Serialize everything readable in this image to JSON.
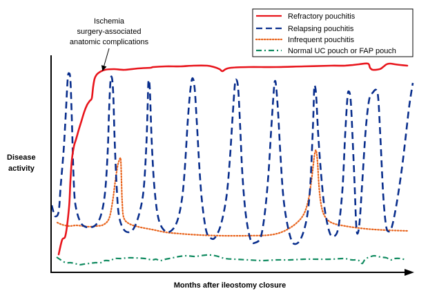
{
  "chart_data": {
    "type": "line",
    "xlabel": "Months after ileostomy closure",
    "ylabel": [
      "Disease",
      "activity"
    ],
    "annotation": [
      "Ischemia",
      "surgery-associated",
      "anatomic complications"
    ],
    "legend_position": "top-right",
    "series": [
      {
        "name": "Refractory pouchitis",
        "color": "#e8141b",
        "style": "solid",
        "points": [
          [
            85,
            368
          ],
          [
            90,
            347
          ],
          [
            95,
            340
          ],
          [
            100,
            300
          ],
          [
            102,
            262
          ],
          [
            104,
            232
          ],
          [
            107,
            212
          ],
          [
            110,
            202
          ],
          [
            114,
            188
          ],
          [
            118,
            175
          ],
          [
            122,
            162
          ],
          [
            126,
            152
          ],
          [
            130,
            146
          ],
          [
            133,
            142
          ],
          [
            135,
            125
          ],
          [
            137,
            114
          ],
          [
            140,
            108
          ],
          [
            145,
            104
          ],
          [
            152,
            101
          ],
          [
            165,
            100
          ],
          [
            180,
            101
          ],
          [
            200,
            99
          ],
          [
            218,
            98
          ],
          [
            222,
            97
          ],
          [
            240,
            96
          ],
          [
            262,
            96
          ],
          [
            280,
            95
          ],
          [
            300,
            95
          ],
          [
            310,
            97
          ],
          [
            318,
            100
          ],
          [
            322,
            103
          ],
          [
            327,
            100
          ],
          [
            335,
            98
          ],
          [
            360,
            97
          ],
          [
            400,
            97
          ],
          [
            440,
            96
          ],
          [
            480,
            95
          ],
          [
            500,
            95
          ],
          [
            520,
            93
          ],
          [
            533,
            92
          ],
          [
            536,
            98
          ],
          [
            540,
            101
          ],
          [
            550,
            100
          ],
          [
            556,
            96
          ],
          [
            560,
            93
          ],
          [
            565,
            92
          ],
          [
            572,
            93
          ],
          [
            580,
            94
          ],
          [
            590,
            95
          ]
        ]
      },
      {
        "name": "Relapsing pouchitis",
        "color": "#082d8c",
        "style": "dashed",
        "points": [
          [
            75,
            297
          ],
          [
            77,
            305
          ],
          [
            80,
            313
          ],
          [
            85,
            306
          ],
          [
            88,
            268
          ],
          [
            92,
            220
          ],
          [
            95,
            170
          ],
          [
            98,
            115
          ],
          [
            100,
            106
          ],
          [
            102,
            116
          ],
          [
            104,
            170
          ],
          [
            106,
            240
          ],
          [
            108,
            285
          ],
          [
            111,
            305
          ],
          [
            115,
            318
          ],
          [
            120,
            326
          ],
          [
            128,
            329
          ],
          [
            138,
            326
          ],
          [
            146,
            312
          ],
          [
            152,
            280
          ],
          [
            156,
            220
          ],
          [
            158,
            160
          ],
          [
            160,
            118
          ],
          [
            162,
            112
          ],
          [
            164,
            135
          ],
          [
            166,
            200
          ],
          [
            169,
            270
          ],
          [
            172,
            310
          ],
          [
            178,
            330
          ],
          [
            186,
            336
          ],
          [
            194,
            330
          ],
          [
            202,
            308
          ],
          [
            208,
            275
          ],
          [
            212,
            210
          ],
          [
            214,
            150
          ],
          [
            215,
            118
          ],
          [
            217,
            128
          ],
          [
            220,
            210
          ],
          [
            224,
            275
          ],
          [
            230,
            318
          ],
          [
            240,
            335
          ],
          [
            250,
            332
          ],
          [
            258,
            316
          ],
          [
            264,
            285
          ],
          [
            268,
            240
          ],
          [
            272,
            175
          ],
          [
            276,
            128
          ],
          [
            279,
            113
          ],
          [
            282,
            128
          ],
          [
            285,
            175
          ],
          [
            289,
            245
          ],
          [
            293,
            295
          ],
          [
            299,
            335
          ],
          [
            306,
            345
          ],
          [
            312,
            343
          ],
          [
            320,
            325
          ],
          [
            328,
            285
          ],
          [
            333,
            230
          ],
          [
            337,
            168
          ],
          [
            340,
            125
          ],
          [
            342,
            115
          ],
          [
            345,
            128
          ],
          [
            348,
            185
          ],
          [
            351,
            250
          ],
          [
            356,
            310
          ],
          [
            363,
            347
          ],
          [
            370,
            351
          ],
          [
            378,
            342
          ],
          [
            384,
            305
          ],
          [
            389,
            250
          ],
          [
            393,
            185
          ],
          [
            396,
            140
          ],
          [
            398,
            118
          ],
          [
            400,
            125
          ],
          [
            403,
            165
          ],
          [
            406,
            220
          ],
          [
            410,
            280
          ],
          [
            415,
            318
          ],
          [
            422,
            347
          ],
          [
            428,
            353
          ],
          [
            436,
            345
          ],
          [
            444,
            318
          ],
          [
            449,
            275
          ],
          [
            452,
            215
          ],
          [
            454,
            165
          ],
          [
            455,
            130
          ],
          [
            456,
            124
          ],
          [
            458,
            138
          ],
          [
            461,
            195
          ],
          [
            465,
            250
          ],
          [
            470,
            300
          ],
          [
            477,
            335
          ],
          [
            483,
            342
          ],
          [
            490,
            330
          ],
          [
            496,
            275
          ],
          [
            500,
            195
          ],
          [
            503,
            145
          ],
          [
            505,
            132
          ],
          [
            508,
            145
          ],
          [
            511,
            205
          ],
          [
            514,
            275
          ],
          [
            516,
            325
          ],
          [
            518,
            338
          ],
          [
            521,
            320
          ],
          [
            525,
            260
          ],
          [
            530,
            185
          ],
          [
            535,
            143
          ],
          [
            540,
            134
          ],
          [
            545,
            130
          ],
          [
            548,
            143
          ],
          [
            551,
            198
          ],
          [
            555,
            280
          ],
          [
            559,
            325
          ],
          [
            563,
            335
          ],
          [
            568,
            327
          ],
          [
            575,
            292
          ],
          [
            582,
            245
          ],
          [
            588,
            195
          ],
          [
            593,
            152
          ],
          [
            598,
            120
          ]
        ]
      },
      {
        "name": "Infrequent pouchitis",
        "color": "#e8621a",
        "style": "dotted",
        "points": [
          [
            83,
            322
          ],
          [
            90,
            325
          ],
          [
            100,
            327
          ],
          [
            110,
            326
          ],
          [
            120,
            327
          ],
          [
            130,
            328
          ],
          [
            140,
            327
          ],
          [
            150,
            325
          ],
          [
            158,
            316
          ],
          [
            163,
            292
          ],
          [
            167,
            262
          ],
          [
            170,
            242
          ],
          [
            172,
            234
          ],
          [
            174,
            229
          ],
          [
            175,
            232
          ],
          [
            176,
            262
          ],
          [
            177,
            292
          ],
          [
            179,
            314
          ],
          [
            186,
            323
          ],
          [
            200,
            328
          ],
          [
            220,
            332
          ],
          [
            240,
            336
          ],
          [
            260,
            338
          ],
          [
            290,
            340
          ],
          [
            320,
            341
          ],
          [
            360,
            341
          ],
          [
            390,
            340
          ],
          [
            410,
            335
          ],
          [
            428,
            324
          ],
          [
            440,
            310
          ],
          [
            447,
            288
          ],
          [
            451,
            262
          ],
          [
            454,
            237
          ],
          [
            456,
            222
          ],
          [
            458,
            218
          ],
          [
            460,
            235
          ],
          [
            462,
            268
          ],
          [
            465,
            295
          ],
          [
            470,
            312
          ],
          [
            480,
            322
          ],
          [
            500,
            327
          ],
          [
            530,
            331
          ],
          [
            560,
            333
          ],
          [
            590,
            334
          ]
        ]
      },
      {
        "name": "Normal UC pouch or FAP pouch",
        "color": "#0f8a5f",
        "style": "dashdot",
        "points": [
          [
            82,
            372
          ],
          [
            88,
            376
          ],
          [
            95,
            380
          ],
          [
            102,
            380
          ],
          [
            108,
            381
          ],
          [
            115,
            383
          ],
          [
            122,
            382
          ],
          [
            130,
            381
          ],
          [
            138,
            380
          ],
          [
            146,
            380
          ],
          [
            152,
            377
          ],
          [
            160,
            377
          ],
          [
            166,
            374
          ],
          [
            176,
            374
          ],
          [
            184,
            373
          ],
          [
            194,
            373
          ],
          [
            210,
            374
          ],
          [
            220,
            376
          ],
          [
            226,
            375
          ],
          [
            232,
            377
          ],
          [
            240,
            375
          ],
          [
            250,
            373
          ],
          [
            260,
            371
          ],
          [
            270,
            370
          ],
          [
            282,
            371
          ],
          [
            290,
            370
          ],
          [
            298,
            369
          ],
          [
            306,
            369
          ],
          [
            316,
            371
          ],
          [
            326,
            374
          ],
          [
            340,
            375
          ],
          [
            360,
            376
          ],
          [
            380,
            377
          ],
          [
            400,
            376
          ],
          [
            420,
            376
          ],
          [
            440,
            375
          ],
          [
            460,
            375
          ],
          [
            480,
            375
          ],
          [
            498,
            374
          ],
          [
            510,
            376
          ],
          [
            518,
            376
          ],
          [
            522,
            379
          ],
          [
            525,
            381
          ],
          [
            529,
            375
          ],
          [
            535,
            372
          ],
          [
            542,
            370
          ],
          [
            552,
            372
          ],
          [
            560,
            373
          ],
          [
            566,
            376
          ],
          [
            572,
            374
          ],
          [
            580,
            374
          ],
          [
            588,
            376
          ]
        ]
      }
    ]
  }
}
